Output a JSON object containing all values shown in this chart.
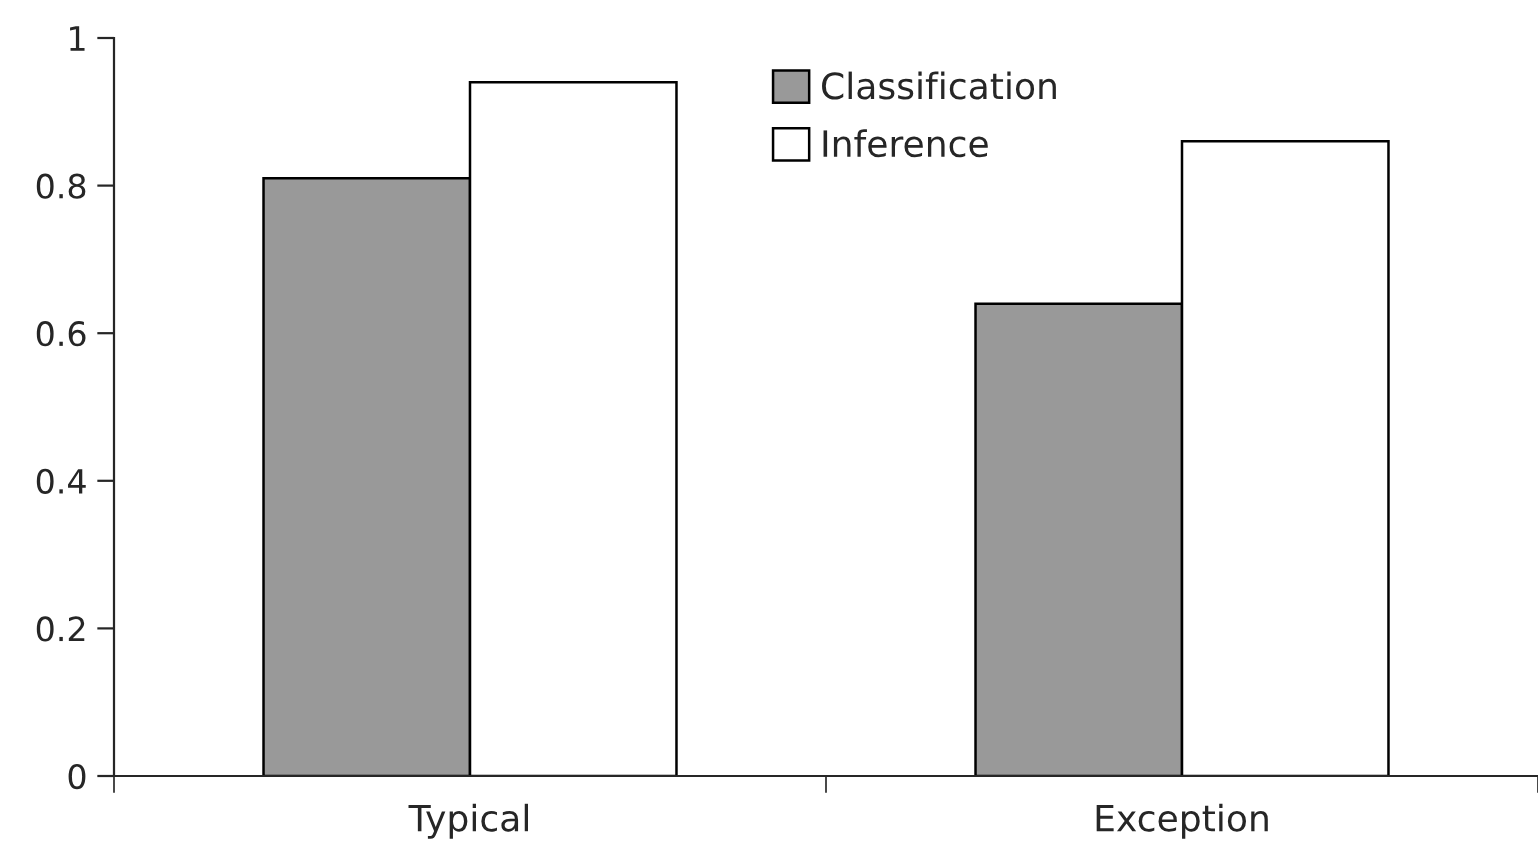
{
  "chart_data": {
    "type": "bar",
    "categories": [
      "Typical",
      "Exception"
    ],
    "series": [
      {
        "name": "Classification",
        "color": "#999999",
        "values": [
          0.81,
          0.64
        ]
      },
      {
        "name": "Inference",
        "color": "#ffffff",
        "values": [
          0.94,
          0.86
        ]
      }
    ],
    "ylim": [
      0,
      1
    ],
    "yticks": [
      0,
      0.2,
      0.4,
      0.6,
      0.8,
      1
    ],
    "grid": false,
    "legend": "top"
  }
}
